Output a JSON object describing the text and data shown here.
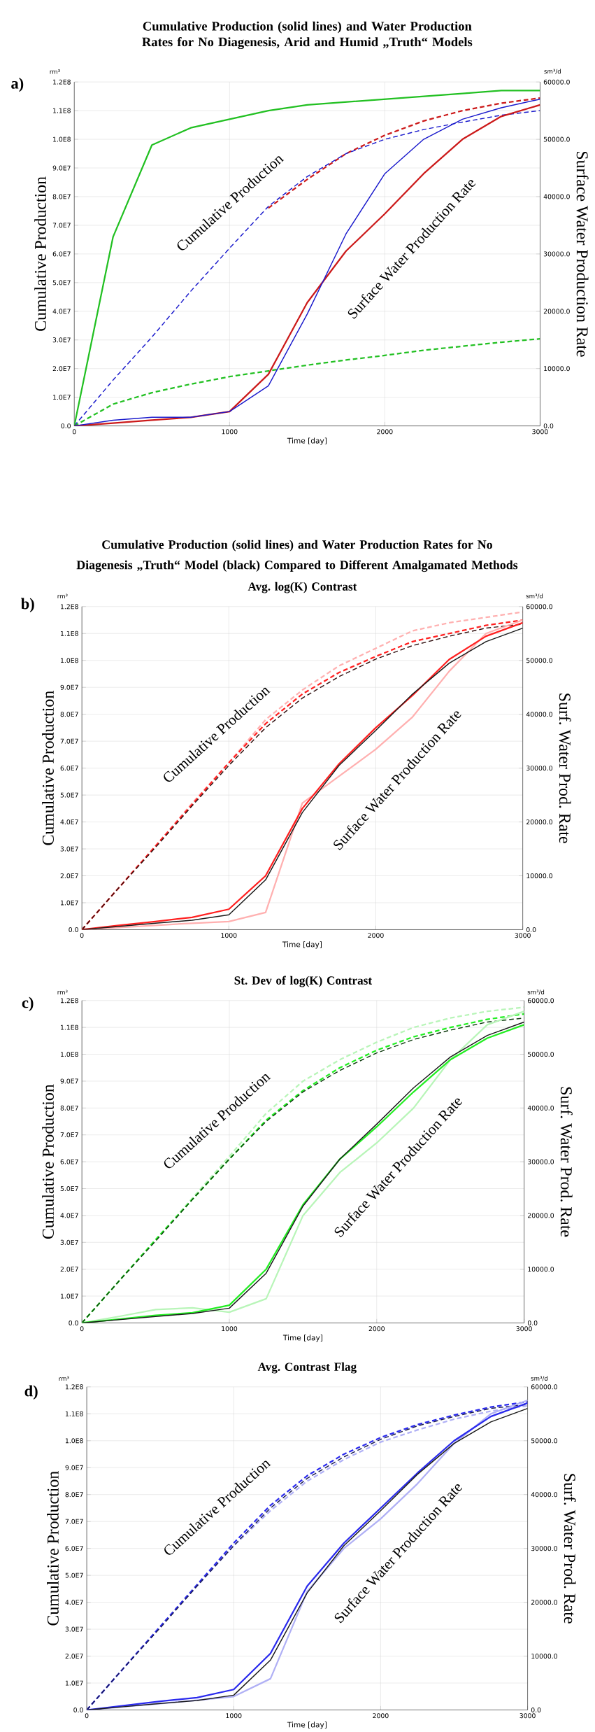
{
  "chart_data": [
    {
      "type": "line",
      "title": "Cumulative Production (solid lines) and Water Production Rates for No Diagenesis, Arid and Humid „Truth“ Models",
      "xlabel": "Time [day]",
      "ylabel": "Cumulative Production",
      "y2label": "Surface Water Production Rate",
      "annotations": [
        "a)",
        "rm³",
        "sm³/d",
        "Cumulative Production",
        "Surface Water Production Rate"
      ],
      "x": [
        0,
        250,
        500,
        750,
        1000,
        1250,
        1500,
        1750,
        2000,
        2250,
        2500,
        2750,
        3000
      ],
      "xlim": [
        0,
        3000
      ],
      "xticks": [
        0,
        1000,
        2000,
        3000
      ],
      "ylim": [
        0,
        120000000
      ],
      "yticks": [
        {
          "value": 0,
          "label": "0.0"
        },
        {
          "value": 10000000,
          "label": "1.0E7"
        },
        {
          "value": 20000000,
          "label": "2.0E7"
        },
        {
          "value": 30000000,
          "label": "3.0E7"
        },
        {
          "value": 40000000,
          "label": "4.0E7"
        },
        {
          "value": 50000000,
          "label": "5.0E7"
        },
        {
          "value": 60000000,
          "label": "6.0E7"
        },
        {
          "value": 70000000,
          "label": "7.0E7"
        },
        {
          "value": 80000000,
          "label": "8.0E7"
        },
        {
          "value": 90000000,
          "label": "9.0E7"
        },
        {
          "value": 100000000,
          "label": "1.0E8"
        },
        {
          "value": 110000000,
          "label": "1.1E8"
        },
        {
          "value": 120000000,
          "label": "1.2E8"
        }
      ],
      "y2lim": [
        0,
        60000
      ],
      "y2ticks": [
        {
          "value": 0,
          "label": "0.0"
        },
        {
          "value": 10000,
          "label": "10000.0"
        },
        {
          "value": 20000,
          "label": "20000.0"
        },
        {
          "value": 30000,
          "label": "30000.0"
        },
        {
          "value": 40000,
          "label": "40000.0"
        },
        {
          "value": 50000,
          "label": "50000.0"
        },
        {
          "value": 60000,
          "label": "60000.0"
        }
      ],
      "grid": true,
      "series": [
        {
          "color": "#22c022",
          "line_style": "dashed",
          "values": [
            0,
            7600000,
            11600000,
            14600000,
            17200000,
            19200000,
            21200000,
            23000000,
            24600000,
            26400000,
            27800000,
            29200000,
            30400000
          ]
        },
        {
          "color": "#cc1a1a",
          "line_style": "dashed",
          "values": [
            null,
            null,
            null,
            null,
            null,
            76000000,
            86000000,
            95000000,
            101400000,
            106400000,
            110000000,
            112600000,
            114400000
          ]
        },
        {
          "color": "#1a1acc",
          "line_style": "dashed",
          "values": [
            0,
            16000000,
            31000000,
            47000000,
            62000000,
            76600000,
            87000000,
            95000000,
            100000000,
            103400000,
            106000000,
            108400000,
            110000000
          ]
        },
        {
          "color": "#22c022",
          "line_style": "solid",
          "axis": "y2",
          "values": [
            0,
            33000,
            49000,
            52000,
            53500,
            55000,
            56000,
            56500,
            57000,
            57500,
            58000,
            58500,
            58500
          ]
        },
        {
          "color": "#cc1a1a",
          "line_style": "solid",
          "axis": "y2",
          "values": [
            0,
            500,
            1000,
            1500,
            2500,
            9000,
            21500,
            30500,
            37000,
            44000,
            50000,
            54000,
            56000
          ]
        },
        {
          "color": "#1a1acc",
          "line_style": "solid",
          "axis": "y2",
          "values": [
            0,
            1000,
            1500,
            1500,
            2500,
            7000,
            19500,
            33500,
            44000,
            50000,
            53500,
            55500,
            57000
          ]
        }
      ]
    },
    {
      "type": "line",
      "title": "Avg. log(K) Contrast",
      "xlabel": "Time [day]",
      "ylabel": "Cumulative Production",
      "y2label": "Surf. Water Prod. Rate",
      "annotations": [
        "Cumulative Production (solid lines) and Water Production Rates for No Diagenesis „Truth“ Model (black) Compared to Different Amalgamated Methods",
        "b)",
        "rm³",
        "sm³/d",
        "Cumulative Production",
        "Surface Water Production Rate"
      ],
      "x": [
        0,
        250,
        500,
        750,
        1000,
        1250,
        1500,
        1750,
        2000,
        2250,
        2500,
        2750,
        3000
      ],
      "xlim": [
        0,
        3000
      ],
      "xticks": [
        0,
        1000,
        2000,
        3000
      ],
      "ylim": [
        0,
        120000000
      ],
      "yticks": [
        {
          "value": 0,
          "label": "0.0"
        },
        {
          "value": 10000000,
          "label": "1.0E7"
        },
        {
          "value": 20000000,
          "label": "2.0E7"
        },
        {
          "value": 30000000,
          "label": "3.0E7"
        },
        {
          "value": 40000000,
          "label": "4.0E7"
        },
        {
          "value": 50000000,
          "label": "5.0E7"
        },
        {
          "value": 60000000,
          "label": "6.0E7"
        },
        {
          "value": 70000000,
          "label": "7.0E7"
        },
        {
          "value": 80000000,
          "label": "8.0E7"
        },
        {
          "value": 90000000,
          "label": "9.0E7"
        },
        {
          "value": 100000000,
          "label": "1.0E8"
        },
        {
          "value": 110000000,
          "label": "1.1E8"
        },
        {
          "value": 120000000,
          "label": "1.2E8"
        }
      ],
      "y2lim": [
        0,
        60000
      ],
      "y2ticks": [
        {
          "value": 0,
          "label": "0.0"
        },
        {
          "value": 10000,
          "label": "10000.0"
        },
        {
          "value": 20000,
          "label": "20000.0"
        },
        {
          "value": 30000,
          "label": "30000.0"
        },
        {
          "value": 40000,
          "label": "40000.0"
        },
        {
          "value": 50000,
          "label": "50000.0"
        },
        {
          "value": 60000,
          "label": "60000.0"
        }
      ],
      "grid": true,
      "series": [
        {
          "color": "#ffb0b0",
          "line_style": "dashed",
          "values": [
            0,
            15500000,
            31000000,
            47000000,
            62000000,
            78000000,
            89000000,
            98000000,
            104500000,
            111000000,
            114000000,
            116000000,
            118000000
          ]
        },
        {
          "color": "#ff2020",
          "line_style": "dashed",
          "values": [
            0,
            15500000,
            31000000,
            46500000,
            62000000,
            76500000,
            87500000,
            95500000,
            101500000,
            107000000,
            110000000,
            113000000,
            115000000
          ]
        },
        {
          "color": "#301010",
          "line_style": "dashed",
          "values": [
            0,
            15500000,
            30500000,
            46000000,
            61000000,
            75000000,
            86000000,
            94000000,
            100500000,
            105500000,
            109000000,
            112000000,
            113500000
          ]
        },
        {
          "color": "#ffb0b0",
          "line_style": "solid",
          "axis": "y2",
          "values": [
            0,
            400,
            800,
            1200,
            1500,
            3200,
            23500,
            28500,
            33500,
            39500,
            48000,
            55000,
            57500
          ]
        },
        {
          "color": "#ff2020",
          "line_style": "solid",
          "axis": "y2",
          "values": [
            0,
            800,
            1500,
            2300,
            3800,
            10000,
            22500,
            30800,
            37500,
            43500,
            50200,
            54500,
            57000
          ]
        },
        {
          "color": "#1a1a1a",
          "line_style": "solid",
          "axis": "y2",
          "values": [
            0,
            600,
            1200,
            1750,
            2750,
            9250,
            21750,
            30500,
            37000,
            43750,
            49500,
            53500,
            56000
          ]
        }
      ]
    },
    {
      "type": "line",
      "title": "St. Dev of log(K) Contrast",
      "xlabel": "Time [day]",
      "ylabel": "Cumulative Production",
      "y2label": "Surf. Water Prod. Rate",
      "annotations": [
        "c)",
        "rm³",
        "sm³/d",
        "Cumulative Production",
        "Surface Water Production Rate"
      ],
      "x": [
        0,
        250,
        500,
        750,
        1000,
        1250,
        1500,
        1750,
        2000,
        2250,
        2500,
        2750,
        3000
      ],
      "xlim": [
        0,
        3000
      ],
      "xticks": [
        0,
        1000,
        2000,
        3000
      ],
      "ylim": [
        0,
        120000000
      ],
      "yticks": [
        {
          "value": 0,
          "label": "0.0"
        },
        {
          "value": 10000000,
          "label": "1.0E7"
        },
        {
          "value": 20000000,
          "label": "2.0E7"
        },
        {
          "value": 30000000,
          "label": "3.0E7"
        },
        {
          "value": 40000000,
          "label": "4.0E7"
        },
        {
          "value": 50000000,
          "label": "5.0E7"
        },
        {
          "value": 60000000,
          "label": "6.0E7"
        },
        {
          "value": 70000000,
          "label": "7.0E7"
        },
        {
          "value": 80000000,
          "label": "8.0E7"
        },
        {
          "value": 90000000,
          "label": "9.0E7"
        },
        {
          "value": 100000000,
          "label": "1.0E8"
        },
        {
          "value": 110000000,
          "label": "1.1E8"
        },
        {
          "value": 120000000,
          "label": "1.2E8"
        }
      ],
      "y2lim": [
        0,
        60000
      ],
      "y2ticks": [
        {
          "value": 0,
          "label": "0.0"
        },
        {
          "value": 10000,
          "label": "10000.0"
        },
        {
          "value": 20000,
          "label": "20000.0"
        },
        {
          "value": 30000,
          "label": "30000.0"
        },
        {
          "value": 40000,
          "label": "40000.0"
        },
        {
          "value": 50000,
          "label": "50000.0"
        },
        {
          "value": 60000,
          "label": "60000.0"
        }
      ],
      "grid": true,
      "series": [
        {
          "color": "#b8f5b8",
          "line_style": "dashed",
          "values": [
            0,
            15500000,
            31000000,
            46500000,
            62000000,
            78000000,
            90000000,
            98000000,
            104500000,
            110000000,
            113500000,
            116000000,
            117500000
          ]
        },
        {
          "color": "#22ee22",
          "line_style": "dashed",
          "values": [
            0,
            15500000,
            31000000,
            46000000,
            61000000,
            75500000,
            86500000,
            95000000,
            101500000,
            106500000,
            110000000,
            113000000,
            115000000
          ]
        },
        {
          "color": "#0e3a0e",
          "line_style": "dashed",
          "values": [
            0,
            15500000,
            30500000,
            46000000,
            61000000,
            75000000,
            86000000,
            94000000,
            100500000,
            105500000,
            109000000,
            112000000,
            113500000
          ]
        },
        {
          "color": "#b8f5b8",
          "line_style": "solid",
          "axis": "y2",
          "values": [
            0,
            1200,
            2500,
            2800,
            2000,
            4500,
            20000,
            28000,
            33500,
            40000,
            49000,
            55500,
            58000
          ]
        },
        {
          "color": "#22ee22",
          "line_style": "solid",
          "axis": "y2",
          "values": [
            0,
            700,
            1400,
            1900,
            3300,
            10000,
            22000,
            30500,
            36500,
            43000,
            49000,
            53000,
            55500
          ]
        },
        {
          "color": "#1a1a1a",
          "line_style": "solid",
          "axis": "y2",
          "values": [
            0,
            600,
            1200,
            1750,
            2750,
            9250,
            21750,
            30500,
            37000,
            43750,
            49500,
            53500,
            56000
          ]
        }
      ]
    },
    {
      "type": "line",
      "title": "Avg. Contrast Flag",
      "xlabel": "Time [day]",
      "ylabel": "Cumulative Production",
      "y2label": "Surf. Water Prod. Rate",
      "annotations": [
        "d)",
        "rm³",
        "sm³/d",
        "Cumulative Production",
        "Surface Water Production Rate"
      ],
      "x": [
        0,
        250,
        500,
        750,
        1000,
        1250,
        1500,
        1750,
        2000,
        2250,
        2500,
        2750,
        3000
      ],
      "xlim": [
        0,
        3000
      ],
      "xticks": [
        0,
        1000,
        2000,
        3000
      ],
      "ylim": [
        0,
        120000000
      ],
      "yticks": [
        {
          "value": 0,
          "label": "0.0"
        },
        {
          "value": 10000000,
          "label": "1.0E7"
        },
        {
          "value": 20000000,
          "label": "2.0E7"
        },
        {
          "value": 30000000,
          "label": "3.0E7"
        },
        {
          "value": 40000000,
          "label": "4.0E7"
        },
        {
          "value": 50000000,
          "label": "5.0E7"
        },
        {
          "value": 60000000,
          "label": "6.0E7"
        },
        {
          "value": 70000000,
          "label": "7.0E7"
        },
        {
          "value": 80000000,
          "label": "8.0E7"
        },
        {
          "value": 90000000,
          "label": "9.0E7"
        },
        {
          "value": 100000000,
          "label": "1.0E8"
        },
        {
          "value": 110000000,
          "label": "1.1E8"
        },
        {
          "value": 120000000,
          "label": "1.2E8"
        }
      ],
      "y2lim": [
        0,
        60000
      ],
      "y2ticks": [
        {
          "value": 0,
          "label": "0.0"
        },
        {
          "value": 10000,
          "label": "10000.0"
        },
        {
          "value": 20000,
          "label": "20000.0"
        },
        {
          "value": 30000,
          "label": "30000.0"
        },
        {
          "value": 40000,
          "label": "40000.0"
        },
        {
          "value": 50000,
          "label": "50000.0"
        },
        {
          "value": 60000,
          "label": "60000.0"
        }
      ],
      "grid": true,
      "series": [
        {
          "color": "#b0b0f5",
          "line_style": "dashed",
          "values": [
            0,
            15500000,
            31000000,
            46000000,
            61000000,
            74000000,
            85000000,
            93000000,
            99500000,
            104000000,
            108000000,
            111000000,
            113000000
          ]
        },
        {
          "color": "#2a2aee",
          "line_style": "dashed",
          "values": [
            0,
            15500000,
            31000000,
            46500000,
            62000000,
            76000000,
            87000000,
            95000000,
            101200000,
            106000000,
            109500000,
            112500000,
            114500000
          ]
        },
        {
          "color": "#1a1a50",
          "line_style": "dashed",
          "values": [
            0,
            15500000,
            30500000,
            46000000,
            61000000,
            75000000,
            86000000,
            94000000,
            100500000,
            105500000,
            109000000,
            112000000,
            113500000
          ]
        },
        {
          "color": "#b0b0f5",
          "line_style": "solid",
          "axis": "y2",
          "values": [
            0,
            600,
            1200,
            1800,
            2500,
            5800,
            22000,
            30000,
            35500,
            42000,
            49500,
            55000,
            57500
          ]
        },
        {
          "color": "#2a2aee",
          "line_style": "solid",
          "axis": "y2",
          "values": [
            0,
            800,
            1600,
            2300,
            3800,
            10500,
            23000,
            31000,
            37500,
            44000,
            50000,
            54500,
            57000
          ]
        },
        {
          "color": "#1a1a1a",
          "line_style": "solid",
          "axis": "y2",
          "values": [
            0,
            600,
            1200,
            1750,
            2750,
            9250,
            21750,
            30500,
            37000,
            43750,
            49500,
            53500,
            56000
          ]
        }
      ]
    }
  ]
}
